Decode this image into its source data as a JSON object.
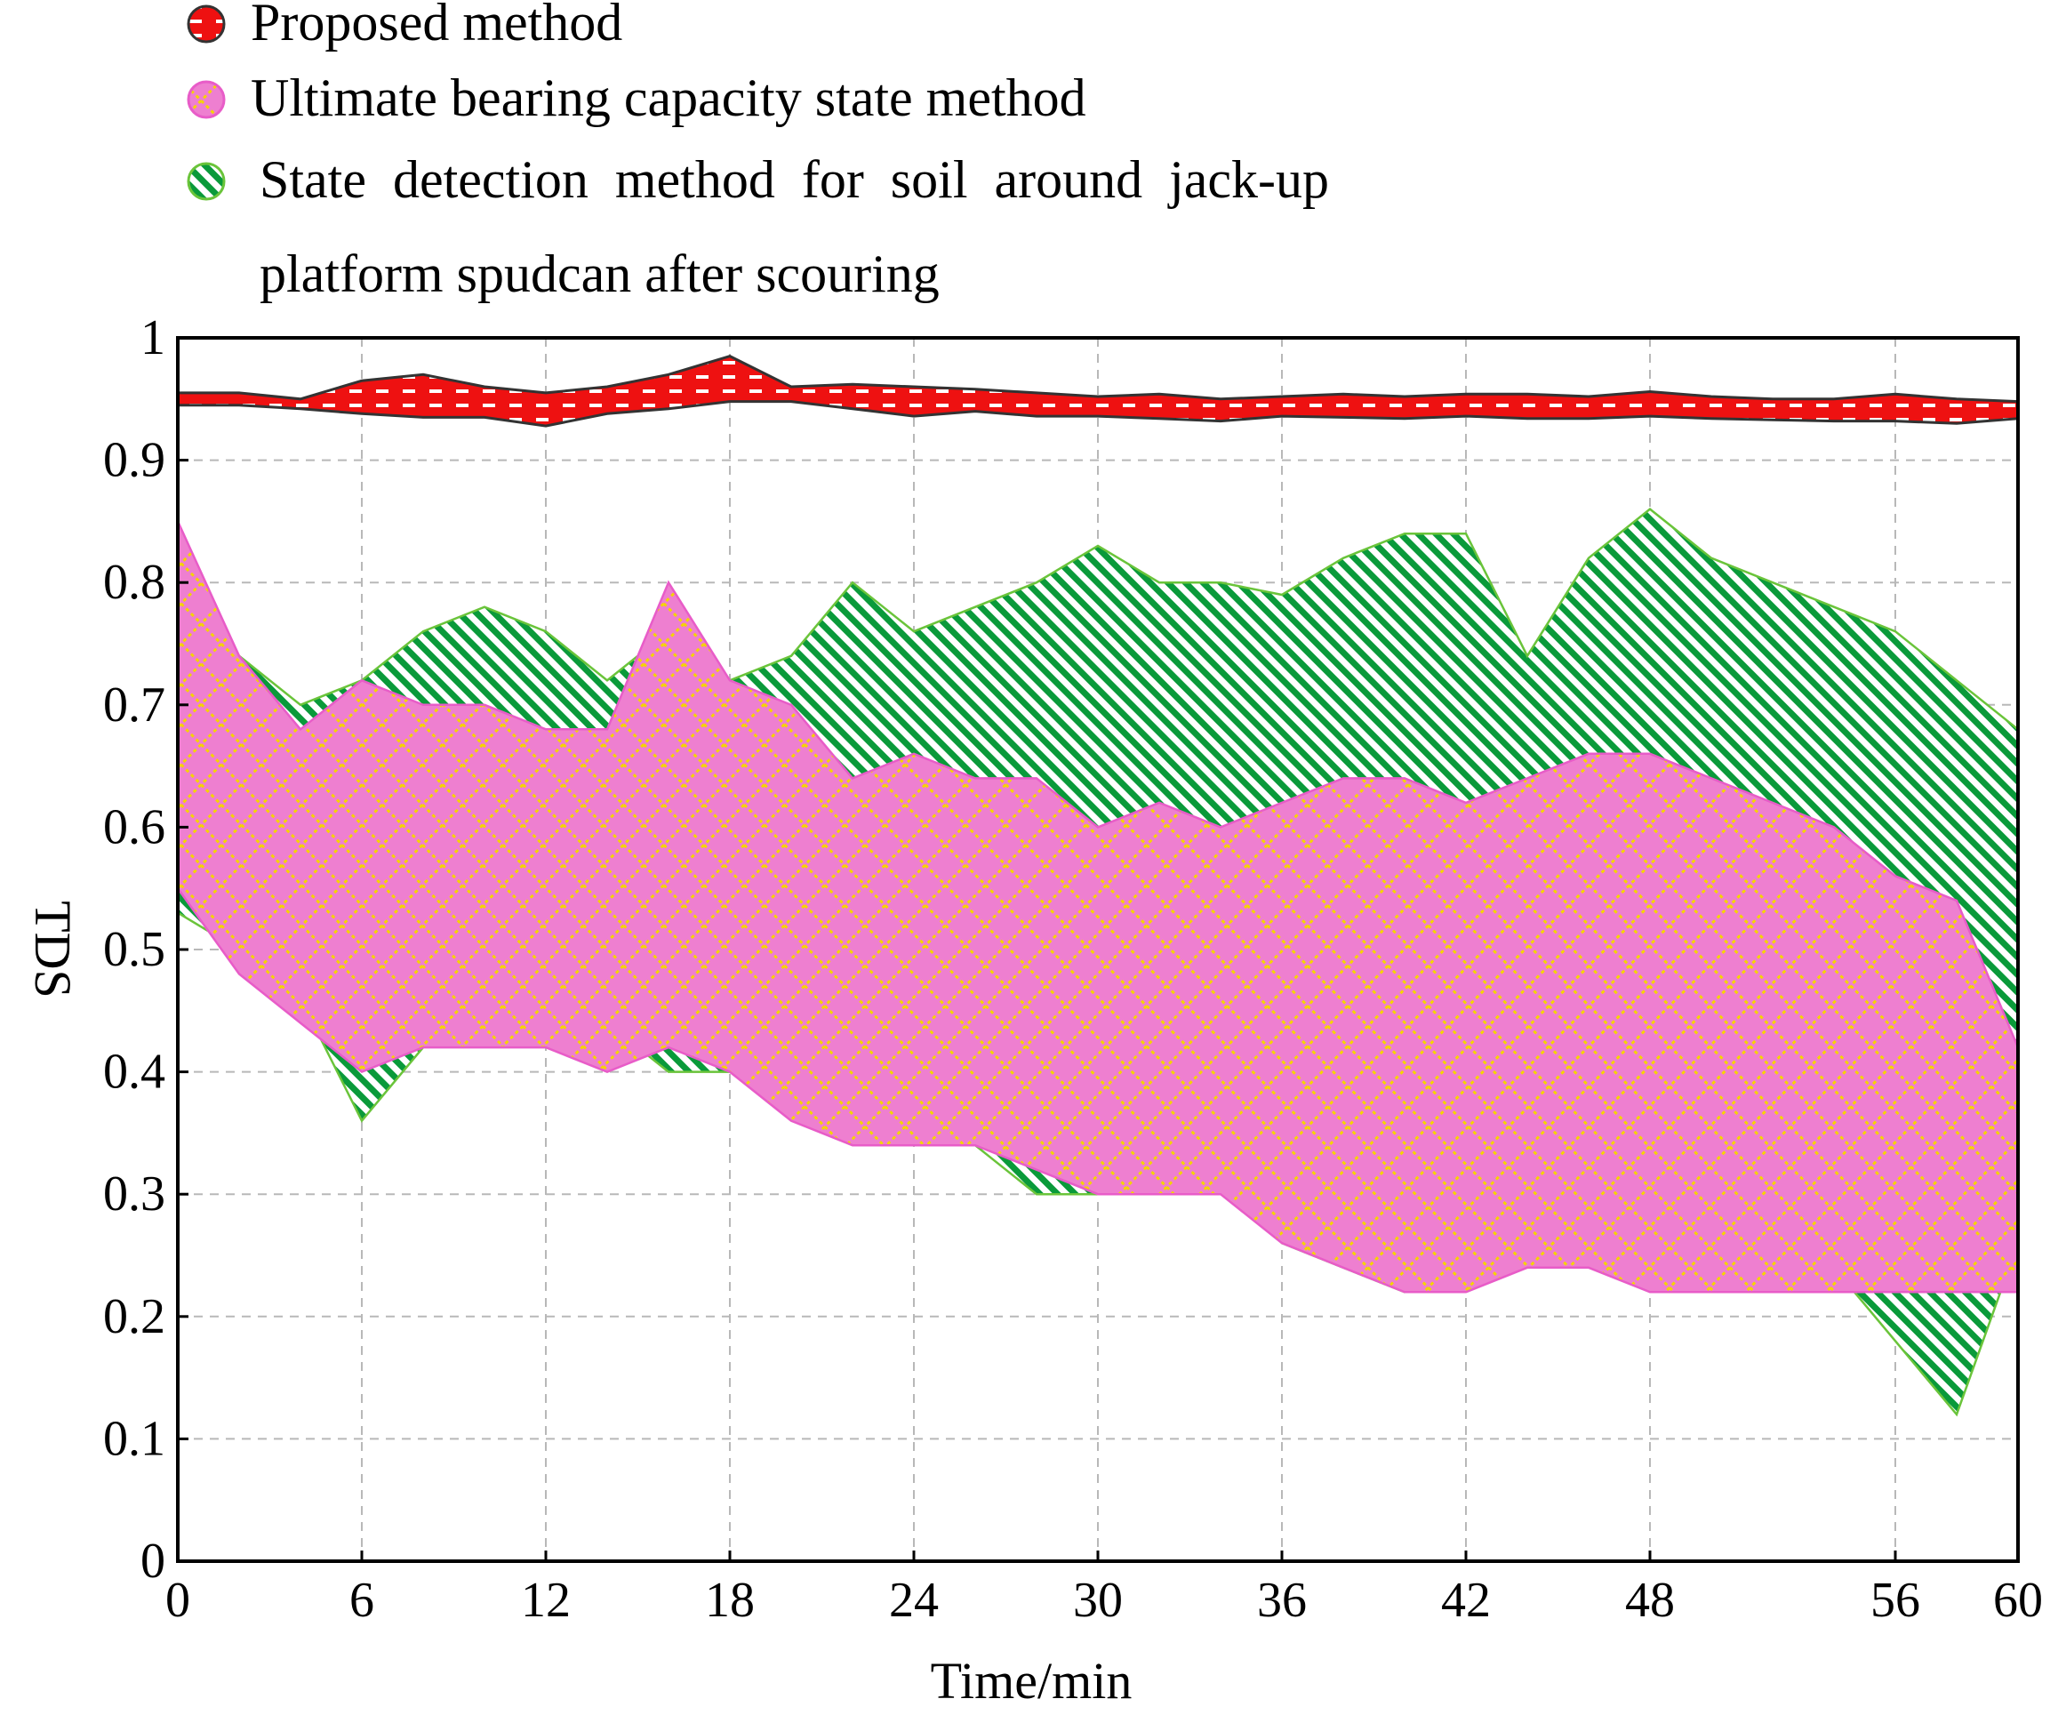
{
  "chart_data": {
    "type": "area",
    "xlabel": "Time/min",
    "ylabel": "TDS",
    "xlim": [
      0,
      60
    ],
    "ylim": [
      0,
      1
    ],
    "grid": true,
    "legend_position": "top-left",
    "x_ticks": [
      0,
      6,
      12,
      18,
      24,
      30,
      36,
      42,
      48,
      56,
      60
    ],
    "x_tick_labels": [
      "0",
      "6",
      "12",
      "18",
      "24",
      "30",
      "36",
      "42",
      "48",
      "56",
      "60"
    ],
    "y_ticks": [
      0,
      0.1,
      0.2,
      0.3,
      0.4,
      0.5,
      0.6,
      0.7,
      0.8,
      0.9,
      1
    ],
    "y_tick_labels": [
      "0",
      "0.1",
      "0.2",
      "0.3",
      "0.4",
      "0.5",
      "0.6",
      "0.7",
      "0.8",
      "0.9",
      "1"
    ],
    "series": [
      {
        "name": "State detection method for soil around jack-up platform spudcan after scouring",
        "legend_lines": [
          "State  detection  method  for  soil  around  jack-up",
          "platform spudcan after scouring"
        ],
        "color": "#0a9a3a",
        "x": [
          0,
          2,
          4,
          6,
          8,
          10,
          12,
          14,
          16,
          18,
          20,
          22,
          24,
          26,
          28,
          30,
          32,
          34,
          36,
          38,
          40,
          42,
          44,
          46,
          48,
          50,
          52,
          54,
          56,
          58,
          60
        ],
        "upper": [
          0.58,
          0.74,
          0.7,
          0.72,
          0.76,
          0.78,
          0.76,
          0.72,
          0.76,
          0.72,
          0.74,
          0.8,
          0.76,
          0.78,
          0.8,
          0.83,
          0.8,
          0.8,
          0.79,
          0.82,
          0.84,
          0.84,
          0.74,
          0.82,
          0.86,
          0.82,
          0.8,
          0.78,
          0.76,
          0.72,
          0.68
        ],
        "lower": [
          0.53,
          0.5,
          0.46,
          0.36,
          0.42,
          0.44,
          0.42,
          0.44,
          0.4,
          0.4,
          0.38,
          0.36,
          0.36,
          0.34,
          0.3,
          0.3,
          0.34,
          0.32,
          0.26,
          0.24,
          0.22,
          0.24,
          0.3,
          0.28,
          0.28,
          0.28,
          0.26,
          0.24,
          0.18,
          0.12,
          0.26
        ]
      },
      {
        "name": "Ultimate bearing capacity state method",
        "legend_lines": [
          "Ultimate bearing capacity state method"
        ],
        "color": "#ee7fd0",
        "x": [
          0,
          2,
          4,
          6,
          8,
          10,
          12,
          14,
          16,
          18,
          20,
          22,
          24,
          26,
          28,
          30,
          32,
          34,
          36,
          38,
          40,
          42,
          44,
          46,
          48,
          50,
          52,
          54,
          56,
          58,
          60
        ],
        "upper": [
          0.85,
          0.74,
          0.68,
          0.72,
          0.7,
          0.7,
          0.68,
          0.68,
          0.8,
          0.72,
          0.7,
          0.64,
          0.66,
          0.64,
          0.64,
          0.6,
          0.62,
          0.6,
          0.62,
          0.64,
          0.64,
          0.62,
          0.64,
          0.66,
          0.66,
          0.64,
          0.62,
          0.6,
          0.56,
          0.54,
          0.42
        ],
        "lower": [
          0.55,
          0.48,
          0.44,
          0.4,
          0.42,
          0.42,
          0.42,
          0.4,
          0.42,
          0.4,
          0.36,
          0.34,
          0.34,
          0.34,
          0.32,
          0.3,
          0.3,
          0.3,
          0.26,
          0.24,
          0.22,
          0.22,
          0.24,
          0.24,
          0.22,
          0.22,
          0.22,
          0.22,
          0.22,
          0.22,
          0.22
        ]
      },
      {
        "name": "Proposed method",
        "legend_lines": [
          "Proposed method"
        ],
        "color": "#ee1111",
        "x": [
          0,
          2,
          4,
          6,
          8,
          10,
          12,
          14,
          16,
          18,
          20,
          22,
          24,
          26,
          28,
          30,
          32,
          34,
          36,
          38,
          40,
          42,
          44,
          46,
          48,
          50,
          52,
          54,
          56,
          58,
          60
        ],
        "upper": [
          0.955,
          0.955,
          0.95,
          0.965,
          0.97,
          0.96,
          0.955,
          0.96,
          0.97,
          0.985,
          0.96,
          0.962,
          0.96,
          0.958,
          0.955,
          0.952,
          0.954,
          0.95,
          0.952,
          0.954,
          0.952,
          0.954,
          0.954,
          0.952,
          0.956,
          0.952,
          0.95,
          0.95,
          0.954,
          0.95,
          0.948
        ],
        "lower": [
          0.945,
          0.945,
          0.942,
          0.938,
          0.935,
          0.935,
          0.928,
          0.938,
          0.942,
          0.948,
          0.948,
          0.942,
          0.936,
          0.94,
          0.936,
          0.936,
          0.934,
          0.932,
          0.936,
          0.935,
          0.934,
          0.936,
          0.934,
          0.934,
          0.936,
          0.934,
          0.933,
          0.932,
          0.932,
          0.93,
          0.934
        ]
      }
    ]
  }
}
